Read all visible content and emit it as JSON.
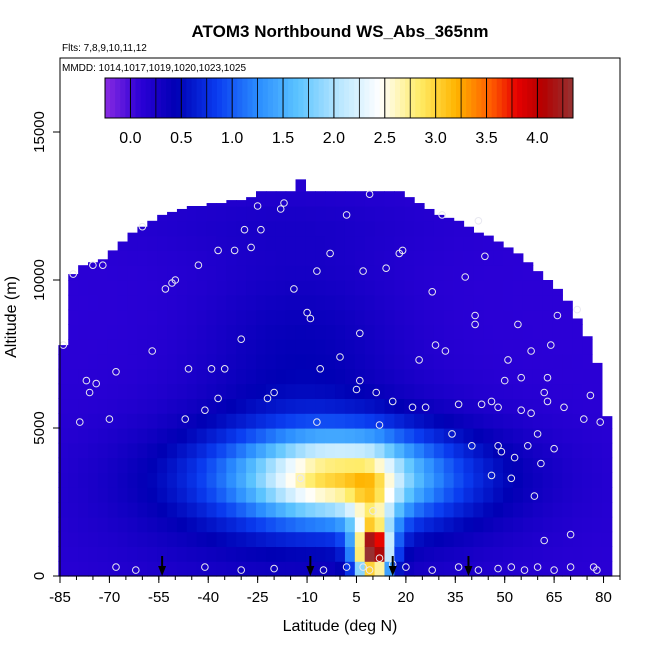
{
  "chart_data": {
    "type": "heatmap",
    "title": "ATOM3 Northbound WS_Abs_365nm",
    "subtitle_flights": "Flts: 7,8,9,10,11,12",
    "subtitle_dates": "MMDD: 1014,1017,1019,1020,1023,1025",
    "xlabel": "Latitude (deg N)",
    "ylabel": "Altitude (m)",
    "xlim": [
      -85,
      85
    ],
    "ylim": [
      0,
      17500
    ],
    "x_ticks": [
      -85,
      -70,
      -55,
      -40,
      -25,
      -10,
      5,
      20,
      35,
      50,
      65,
      80
    ],
    "x_tick_labels": [
      "-85",
      "-70",
      "-55",
      "-40",
      "-25",
      "-10",
      "5",
      "20",
      "35",
      "50",
      "65",
      "80"
    ],
    "y_ticks": [
      0,
      5000,
      10000,
      15000
    ],
    "y_tick_labels": [
      "0",
      "5000",
      "10000",
      "15000"
    ],
    "colorbar": {
      "range": [
        -0.25,
        4.35
      ],
      "ticks": [
        0,
        0.5,
        1,
        1.5,
        2,
        2.5,
        3,
        3.5,
        4
      ],
      "tick_labels": [
        "0.0",
        "0.5",
        "1.0",
        "1.5",
        "2.0",
        "2.5",
        "3.0",
        "3.5",
        "4.0"
      ],
      "stops": [
        {
          "v": -0.25,
          "color": "#8a2be2"
        },
        {
          "v": 0.1,
          "color": "#2b00d6"
        },
        {
          "v": 0.45,
          "color": "#0000b4"
        },
        {
          "v": 0.85,
          "color": "#0a3cf0"
        },
        {
          "v": 1.25,
          "color": "#2a8cff"
        },
        {
          "v": 1.65,
          "color": "#5cc4ff"
        },
        {
          "v": 2.05,
          "color": "#b8e6ff"
        },
        {
          "v": 2.45,
          "color": "#ffffff"
        },
        {
          "v": 2.85,
          "color": "#ffeb64"
        },
        {
          "v": 3.2,
          "color": "#ffb400"
        },
        {
          "v": 3.55,
          "color": "#ff5a00"
        },
        {
          "v": 3.8,
          "color": "#e60000"
        },
        {
          "v": 4.05,
          "color": "#b40000"
        },
        {
          "v": 4.35,
          "color": "#963232"
        }
      ]
    },
    "arrows_latitude": [
      -54,
      -9,
      16,
      39
    ],
    "field_lat_step": 3,
    "field_alt_step": 500,
    "field_columns": [
      {
        "lat": -84,
        "top": 7800
      },
      {
        "lat": -81,
        "top": 10200
      },
      {
        "lat": -78,
        "top": 10500
      },
      {
        "lat": -75,
        "top": 10600
      },
      {
        "lat": -72,
        "top": 10700
      },
      {
        "lat": -69,
        "top": 11000
      },
      {
        "lat": -66,
        "top": 11300
      },
      {
        "lat": -63,
        "top": 11600
      },
      {
        "lat": -60,
        "top": 11800
      },
      {
        "lat": -57,
        "top": 12000
      },
      {
        "lat": -54,
        "top": 12200
      },
      {
        "lat": -51,
        "top": 12300
      },
      {
        "lat": -48,
        "top": 12400
      },
      {
        "lat": -45,
        "top": 12500
      },
      {
        "lat": -42,
        "top": 12500
      },
      {
        "lat": -39,
        "top": 12600
      },
      {
        "lat": -36,
        "top": 12600
      },
      {
        "lat": -33,
        "top": 12700
      },
      {
        "lat": -30,
        "top": 12700
      },
      {
        "lat": -27,
        "top": 12800
      },
      {
        "lat": -24,
        "top": 13000
      },
      {
        "lat": -21,
        "top": 13000
      },
      {
        "lat": -18,
        "top": 13000
      },
      {
        "lat": -15,
        "top": 13000
      },
      {
        "lat": -12,
        "top": 13400
      },
      {
        "lat": -9,
        "top": 13000
      },
      {
        "lat": -6,
        "top": 13000
      },
      {
        "lat": -3,
        "top": 13000
      },
      {
        "lat": 0,
        "top": 13000
      },
      {
        "lat": 3,
        "top": 13000
      },
      {
        "lat": 6,
        "top": 13000
      },
      {
        "lat": 9,
        "top": 13000
      },
      {
        "lat": 12,
        "top": 13000
      },
      {
        "lat": 15,
        "top": 13000
      },
      {
        "lat": 18,
        "top": 13000
      },
      {
        "lat": 21,
        "top": 12800
      },
      {
        "lat": 24,
        "top": 12600
      },
      {
        "lat": 27,
        "top": 12400
      },
      {
        "lat": 30,
        "top": 12200
      },
      {
        "lat": 33,
        "top": 12100
      },
      {
        "lat": 36,
        "top": 12000
      },
      {
        "lat": 39,
        "top": 11800
      },
      {
        "lat": 42,
        "top": 11600
      },
      {
        "lat": 45,
        "top": 11500
      },
      {
        "lat": 48,
        "top": 11300
      },
      {
        "lat": 51,
        "top": 11100
      },
      {
        "lat": 54,
        "top": 10900
      },
      {
        "lat": 57,
        "top": 10600
      },
      {
        "lat": 60,
        "top": 10300
      },
      {
        "lat": 63,
        "top": 10000
      },
      {
        "lat": 66,
        "top": 9700
      },
      {
        "lat": 69,
        "top": 9300
      },
      {
        "lat": 72,
        "top": 8700
      },
      {
        "lat": 75,
        "top": 8100
      },
      {
        "lat": 78,
        "top": 7200
      },
      {
        "lat": 81,
        "top": 5400
      }
    ],
    "field_features": [
      {
        "lat": 0,
        "alt": 3400,
        "sigma_lat": 30,
        "sigma_alt": 1200,
        "value": 1.3
      },
      {
        "lat": -2,
        "alt": 3300,
        "sigma_lat": 16,
        "sigma_alt": 900,
        "value": 1.4
      },
      {
        "lat": 10,
        "alt": 800,
        "sigma_lat": 3.5,
        "sigma_alt": 600,
        "value": 3.8
      },
      {
        "lat": 10,
        "alt": 2000,
        "sigma_lat": 5,
        "sigma_alt": 1200,
        "value": 1.1
      },
      {
        "lat": -10,
        "alt": 2500,
        "sigma_lat": 40,
        "sigma_alt": 2200,
        "value": 0.45
      },
      {
        "lat": -12,
        "alt": 7500,
        "sigma_lat": 22,
        "sigma_alt": 2500,
        "value": 0.4
      },
      {
        "lat": -20,
        "alt": 12000,
        "sigma_lat": 40,
        "sigma_alt": 900,
        "value": 0.2
      }
    ],
    "sample_points": [
      {
        "lat": -84,
        "alt": 7800
      },
      {
        "lat": -81,
        "alt": 10200
      },
      {
        "lat": -79,
        "alt": 5200
      },
      {
        "lat": -77,
        "alt": 6600
      },
      {
        "lat": -76,
        "alt": 6200
      },
      {
        "lat": -74,
        "alt": 6500
      },
      {
        "lat": -75,
        "alt": 10500
      },
      {
        "lat": -72,
        "alt": 10500
      },
      {
        "lat": -70,
        "alt": 5300
      },
      {
        "lat": -68,
        "alt": 6900
      },
      {
        "lat": -60,
        "alt": 11800
      },
      {
        "lat": -57,
        "alt": 7600
      },
      {
        "lat": -53,
        "alt": 9700
      },
      {
        "lat": -51,
        "alt": 9900
      },
      {
        "lat": -50,
        "alt": 10000
      },
      {
        "lat": -47,
        "alt": 5300
      },
      {
        "lat": -46,
        "alt": 7000
      },
      {
        "lat": -43,
        "alt": 10500
      },
      {
        "lat": -41,
        "alt": 5600
      },
      {
        "lat": -39,
        "alt": 7000
      },
      {
        "lat": -37,
        "alt": 11000
      },
      {
        "lat": -37,
        "alt": 6000
      },
      {
        "lat": -35,
        "alt": 7000
      },
      {
        "lat": -32,
        "alt": 11000
      },
      {
        "lat": -30,
        "alt": 8000
      },
      {
        "lat": -29,
        "alt": 11700
      },
      {
        "lat": -27,
        "alt": 11100
      },
      {
        "lat": -25,
        "alt": 12500
      },
      {
        "lat": -24,
        "alt": 11700
      },
      {
        "lat": -22,
        "alt": 6000
      },
      {
        "lat": -20,
        "alt": 6200
      },
      {
        "lat": -18,
        "alt": 12400
      },
      {
        "lat": -17,
        "alt": 12600
      },
      {
        "lat": -14,
        "alt": 9700
      },
      {
        "lat": -10,
        "alt": 8900
      },
      {
        "lat": -9,
        "alt": 8700
      },
      {
        "lat": -7,
        "alt": 10300
      },
      {
        "lat": -7,
        "alt": 5200
      },
      {
        "lat": -6,
        "alt": 7000
      },
      {
        "lat": -3,
        "alt": 10900
      },
      {
        "lat": 0,
        "alt": 7400
      },
      {
        "lat": 2,
        "alt": 12200
      },
      {
        "lat": 5,
        "alt": 6300
      },
      {
        "lat": 6,
        "alt": 8200
      },
      {
        "lat": 6,
        "alt": 6600
      },
      {
        "lat": 7,
        "alt": 10300
      },
      {
        "lat": 9,
        "alt": 12900
      },
      {
        "lat": 11,
        "alt": 6200
      },
      {
        "lat": 12,
        "alt": 5100
      },
      {
        "lat": 14,
        "alt": 10400
      },
      {
        "lat": 16,
        "alt": 5900
      },
      {
        "lat": 18,
        "alt": 10900
      },
      {
        "lat": 19,
        "alt": 11000
      },
      {
        "lat": 22,
        "alt": 5700
      },
      {
        "lat": 24,
        "alt": 7300
      },
      {
        "lat": 26,
        "alt": 5700
      },
      {
        "lat": 28,
        "alt": 9600
      },
      {
        "lat": 29,
        "alt": 7800
      },
      {
        "lat": 31,
        "alt": 12200
      },
      {
        "lat": 32,
        "alt": 7600
      },
      {
        "lat": 34,
        "alt": 4800
      },
      {
        "lat": 36,
        "alt": 5800
      },
      {
        "lat": 38,
        "alt": 10100
      },
      {
        "lat": 40,
        "alt": 4400
      },
      {
        "lat": 41,
        "alt": 8800
      },
      {
        "lat": 41,
        "alt": 8500
      },
      {
        "lat": 42,
        "alt": 12000
      },
      {
        "lat": 43,
        "alt": 5800
      },
      {
        "lat": 44,
        "alt": 10800
      },
      {
        "lat": 46,
        "alt": 5900
      },
      {
        "lat": 46,
        "alt": 3400
      },
      {
        "lat": 48,
        "alt": 5700
      },
      {
        "lat": 48,
        "alt": 4400
      },
      {
        "lat": 49,
        "alt": 4200
      },
      {
        "lat": 50,
        "alt": 6600
      },
      {
        "lat": 51,
        "alt": 7300
      },
      {
        "lat": 52,
        "alt": 3300
      },
      {
        "lat": 53,
        "alt": 4000
      },
      {
        "lat": 54,
        "alt": 8500
      },
      {
        "lat": 55,
        "alt": 6700
      },
      {
        "lat": 55,
        "alt": 5600
      },
      {
        "lat": 57,
        "alt": 4400
      },
      {
        "lat": 58,
        "alt": 7600
      },
      {
        "lat": 58,
        "alt": 5500
      },
      {
        "lat": 59,
        "alt": 2700
      },
      {
        "lat": 60,
        "alt": 4800
      },
      {
        "lat": 61,
        "alt": 3800
      },
      {
        "lat": 62,
        "alt": 6200
      },
      {
        "lat": 62,
        "alt": 1200
      },
      {
        "lat": 63,
        "alt": 6700
      },
      {
        "lat": 63,
        "alt": 5900
      },
      {
        "lat": 64,
        "alt": 7800
      },
      {
        "lat": 65,
        "alt": 4300
      },
      {
        "lat": 66,
        "alt": 8800
      },
      {
        "lat": 68,
        "alt": 5700
      },
      {
        "lat": 70,
        "alt": 1400
      },
      {
        "lat": 72,
        "alt": 9000
      },
      {
        "lat": 74,
        "alt": 5300
      },
      {
        "lat": 76,
        "alt": 6100
      },
      {
        "lat": 77,
        "alt": 300
      },
      {
        "lat": 79,
        "alt": 5200
      },
      {
        "lat": -68,
        "alt": 300
      },
      {
        "lat": -62,
        "alt": 200
      },
      {
        "lat": -41,
        "alt": 300
      },
      {
        "lat": -30,
        "alt": 200
      },
      {
        "lat": -20,
        "alt": 250
      },
      {
        "lat": -5,
        "alt": 200
      },
      {
        "lat": 2,
        "alt": 300
      },
      {
        "lat": 7,
        "alt": 300
      },
      {
        "lat": 9,
        "alt": 200
      },
      {
        "lat": 12,
        "alt": 600
      },
      {
        "lat": 16,
        "alt": 400
      },
      {
        "lat": 20,
        "alt": 300
      },
      {
        "lat": 28,
        "alt": 200
      },
      {
        "lat": 36,
        "alt": 300
      },
      {
        "lat": 42,
        "alt": 200
      },
      {
        "lat": 48,
        "alt": 250
      },
      {
        "lat": 52,
        "alt": 300
      },
      {
        "lat": 56,
        "alt": 200
      },
      {
        "lat": 60,
        "alt": 300
      },
      {
        "lat": 65,
        "alt": 200
      },
      {
        "lat": 70,
        "alt": 300
      },
      {
        "lat": 78,
        "alt": 200
      },
      {
        "lat": 10,
        "alt": 2200
      },
      {
        "lat": -12,
        "alt": 3300
      }
    ]
  }
}
